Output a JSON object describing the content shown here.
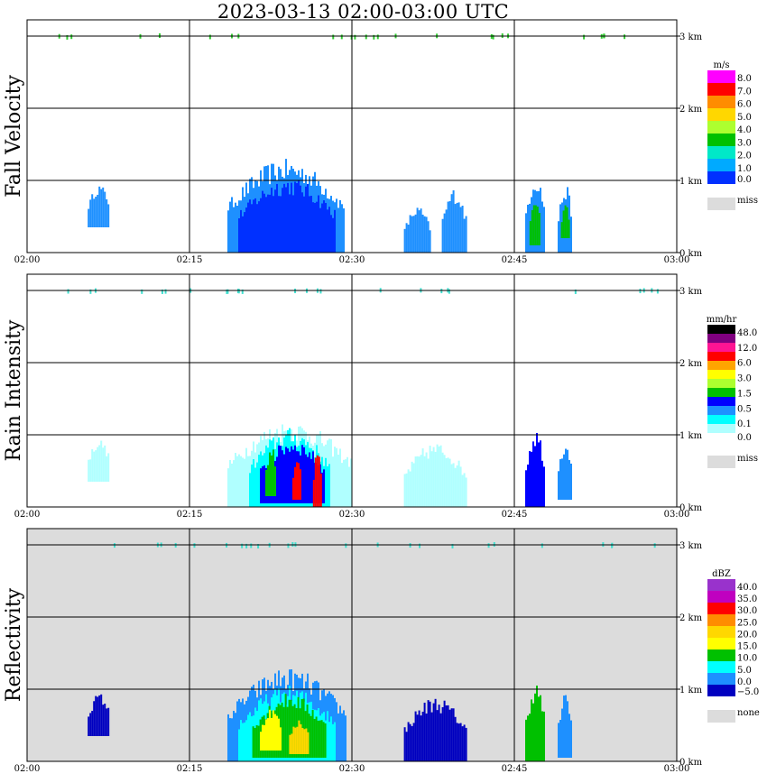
{
  "title": "2023-03-13   02:00-03:00 UTC",
  "colors": {
    "axis": "#000000",
    "miss": "#dcdcdc"
  },
  "time_ticks": [
    "02:00",
    "02:15",
    "02:30",
    "02:45",
    "03:00"
  ],
  "height_ticks": [
    "0 km",
    "1 km",
    "2 km",
    "3 km"
  ],
  "chart_data": [
    {
      "type": "heatmap",
      "ylabel": "Fall Velocity",
      "xlim": [
        "02:00",
        "03:00"
      ],
      "ylim_km": [
        0,
        3
      ],
      "legend": {
        "unit": "m/s",
        "labels": [
          "8.0",
          "7.0",
          "6.0",
          "5.0",
          "4.0",
          "3.0",
          "2.0",
          "1.0",
          "0.0"
        ],
        "colors": [
          "#ff00ff",
          "#ff0000",
          "#ff8c00",
          "#ffd700",
          "#adff2f",
          "#00c000",
          "#00e8c8",
          "#00aaff",
          "#0030ff"
        ],
        "missing_label": "miss",
        "missing_color": "#dcdcdc"
      },
      "background": "#ffffff",
      "echo_regions": [
        {
          "t": [
            5.6,
            7.6
          ],
          "h": [
            0.35,
            0.95
          ],
          "color": "#1e90ff"
        },
        {
          "t": [
            18.5,
            29.2
          ],
          "h": [
            0.0,
            1.3
          ],
          "color": "#1e90ff"
        },
        {
          "t": [
            19.5,
            28.5
          ],
          "h": [
            0.0,
            1.05
          ],
          "color": "#0030ff"
        },
        {
          "t": [
            34.8,
            37.2
          ],
          "h": [
            0.0,
            0.65
          ],
          "color": "#1e90ff"
        },
        {
          "t": [
            38.3,
            40.5
          ],
          "h": [
            0.0,
            0.9
          ],
          "color": "#1e90ff"
        },
        {
          "t": [
            46.0,
            47.8
          ],
          "h": [
            0.0,
            1.1
          ],
          "color": "#1e90ff"
        },
        {
          "t": [
            49.0,
            50.3
          ],
          "h": [
            0.0,
            0.95
          ],
          "color": "#1e90ff"
        },
        {
          "t": [
            46.4,
            47.4
          ],
          "h": [
            0.1,
            0.75
          ],
          "color": "#00c000"
        },
        {
          "t": [
            49.3,
            50.0
          ],
          "h": [
            0.2,
            0.7
          ],
          "color": "#00c000"
        }
      ],
      "top_speckles_color": "#32cd32"
    },
    {
      "type": "heatmap",
      "ylabel": "Rain Intensity",
      "xlim": [
        "02:00",
        "03:00"
      ],
      "ylim_km": [
        0,
        3
      ],
      "legend": {
        "unit": "mm/hr",
        "labels": [
          "48.0",
          "12.0",
          "6.0",
          "3.0",
          "1.5",
          "0.5",
          "0.1",
          "0.0"
        ],
        "colors": [
          "#000000",
          "#800080",
          "#ff1493",
          "#ff0000",
          "#ffa500",
          "#ffff00",
          "#adff2f",
          "#00c000",
          "#0000ff",
          "#1e90ff",
          "#00ffff",
          "#b0ffff",
          "#ffffff"
        ],
        "missing_label": "miss",
        "missing_color": "#dcdcdc"
      },
      "background": "#ffffff",
      "echo_regions": [
        {
          "t": [
            5.6,
            7.6
          ],
          "h": [
            0.35,
            0.95
          ],
          "color": "#b0ffff"
        },
        {
          "t": [
            18.5,
            30.0
          ],
          "h": [
            0.0,
            1.2
          ],
          "color": "#b0ffff"
        },
        {
          "t": [
            20.5,
            28.0
          ],
          "h": [
            0.0,
            1.1
          ],
          "color": "#00ffff"
        },
        {
          "t": [
            21.5,
            27.5
          ],
          "h": [
            0.05,
            0.95
          ],
          "color": "#0000ff"
        },
        {
          "t": [
            22.0,
            23.0
          ],
          "h": [
            0.15,
            0.85
          ],
          "color": "#00c000"
        },
        {
          "t": [
            24.5,
            25.3
          ],
          "h": [
            0.1,
            0.75
          ],
          "color": "#ff0000"
        },
        {
          "t": [
            26.4,
            27.1
          ],
          "h": [
            0.0,
            0.8
          ],
          "color": "#ff0000"
        },
        {
          "t": [
            34.8,
            40.5
          ],
          "h": [
            0.0,
            0.9
          ],
          "color": "#b0ffff"
        },
        {
          "t": [
            46.0,
            47.8
          ],
          "h": [
            0.0,
            1.1
          ],
          "color": "#0000ff"
        },
        {
          "t": [
            49.0,
            50.3
          ],
          "h": [
            0.1,
            0.95
          ],
          "color": "#1e90ff"
        }
      ],
      "top_speckles_color": "#40e0d0"
    },
    {
      "type": "heatmap",
      "ylabel": "Reflectivity",
      "xlim": [
        "02:00",
        "03:00"
      ],
      "ylim_km": [
        0,
        3
      ],
      "legend": {
        "unit": "dBZ",
        "labels": [
          "40.0",
          "35.0",
          "30.0",
          "25.0",
          "20.0",
          "15.0",
          "10.0",
          "5.0",
          "0.0",
          "−5.0"
        ],
        "colors": [
          "#9932cc",
          "#c000c0",
          "#ff0000",
          "#ff8c00",
          "#ffd700",
          "#ffff00",
          "#00c000",
          "#00ffff",
          "#1e90ff",
          "#0000c0"
        ],
        "missing_label": "none",
        "missing_color": "#dcdcdc"
      },
      "background": "#dcdcdc",
      "echo_regions": [
        {
          "t": [
            5.6,
            7.6
          ],
          "h": [
            0.35,
            0.95
          ],
          "color": "#0000c0"
        },
        {
          "t": [
            18.5,
            29.5
          ],
          "h": [
            0.0,
            1.3
          ],
          "color": "#1e90ff"
        },
        {
          "t": [
            19.5,
            28.5
          ],
          "h": [
            0.0,
            1.05
          ],
          "color": "#00ffff"
        },
        {
          "t": [
            20.8,
            27.5
          ],
          "h": [
            0.05,
            0.95
          ],
          "color": "#00c000"
        },
        {
          "t": [
            21.5,
            23.5
          ],
          "h": [
            0.15,
            0.75
          ],
          "color": "#ffff00"
        },
        {
          "t": [
            24.2,
            26.0
          ],
          "h": [
            0.1,
            0.6
          ],
          "color": "#ffd700"
        },
        {
          "t": [
            34.8,
            40.5
          ],
          "h": [
            0.0,
            0.9
          ],
          "color": "#0000c0"
        },
        {
          "t": [
            46.0,
            47.8
          ],
          "h": [
            0.0,
            1.1
          ],
          "color": "#00c000"
        },
        {
          "t": [
            49.0,
            50.3
          ],
          "h": [
            0.05,
            0.95
          ],
          "color": "#1e90ff"
        }
      ],
      "top_speckles_color": "#40e0d0"
    }
  ]
}
